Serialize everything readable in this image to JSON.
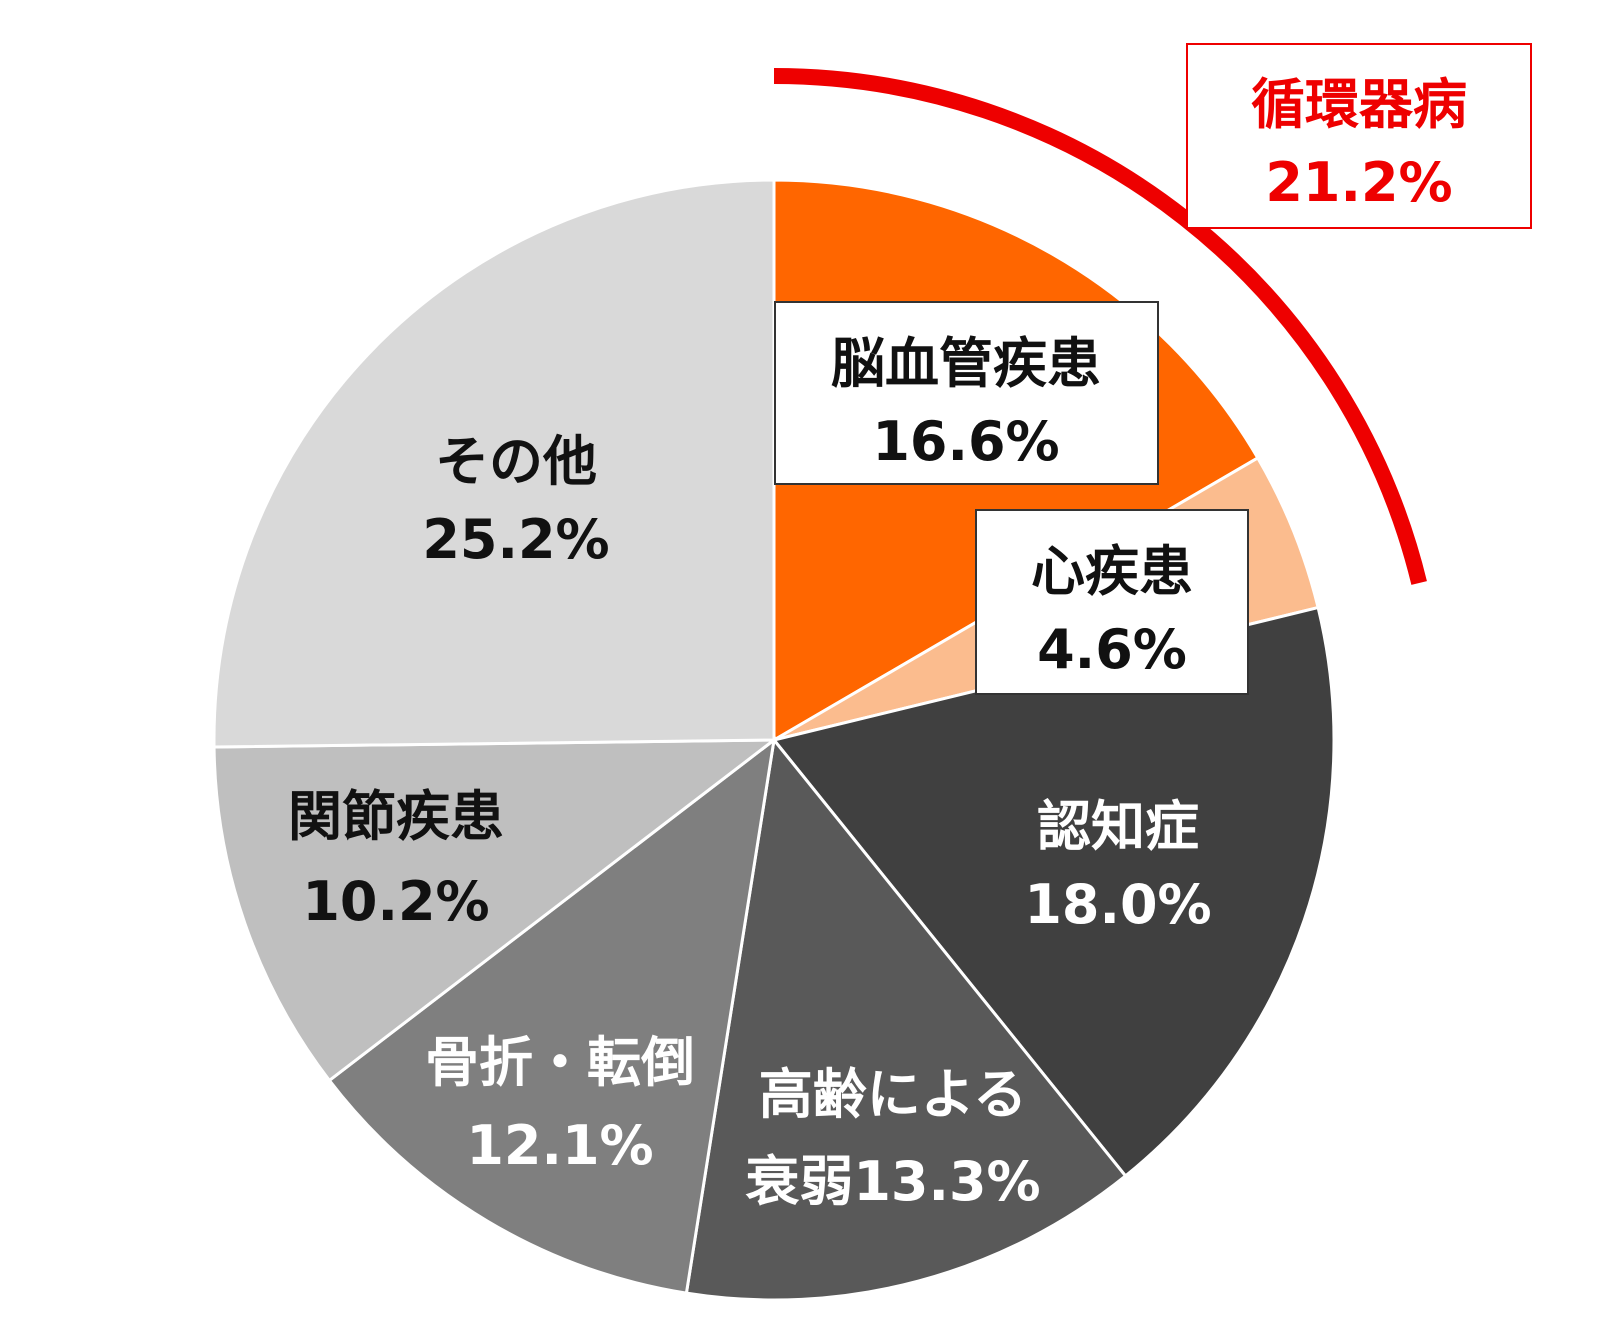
{
  "chart_data": {
    "type": "pie",
    "start": "12 o'clock",
    "direction": "clockwise",
    "slices": [
      {
        "name": "脳血管疾患",
        "value": 16.6,
        "label": "16.6%",
        "color": "#ff6600"
      },
      {
        "name": "心疾患",
        "value": 4.6,
        "label": "4.6%",
        "color": "#fbbc8e"
      },
      {
        "name": "認知症",
        "value": 18.0,
        "label": "18.0%",
        "color": "#404040"
      },
      {
        "name": "高齢による衰弱",
        "value": 13.3,
        "label": "13.3%",
        "color": "#595959"
      },
      {
        "name": "骨折・転倒",
        "value": 12.1,
        "label": "12.1%",
        "color": "#7f7f7f"
      },
      {
        "name": "関節疾患",
        "value": 10.2,
        "label": "10.2%",
        "color": "#bfbfbf"
      },
      {
        "name": "その他",
        "value": 25.2,
        "label": "25.2%",
        "color": "#d9d9d9"
      }
    ],
    "group_annotation": {
      "name": "循環器病",
      "value": 21.2,
      "label": "21.2%",
      "members": [
        "脳血管疾患",
        "心疾患"
      ],
      "color": "#ee0000"
    }
  }
}
